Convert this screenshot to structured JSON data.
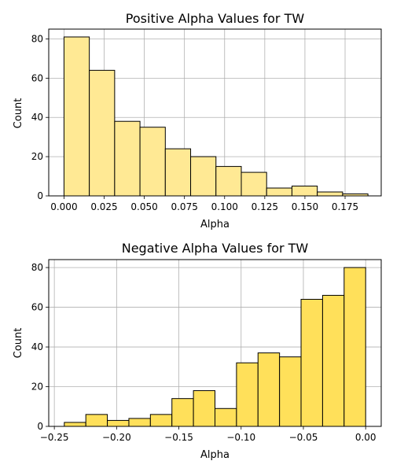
{
  "chart_data": [
    {
      "type": "histogram",
      "title": "Positive Alpha Values for TW",
      "xlabel": "Alpha",
      "ylabel": "Count",
      "bar_color": "#ffe994",
      "edge_color": "#000000",
      "grid": true,
      "xlim": [
        -0.0095,
        0.1975
      ],
      "ylim": [
        0,
        85
      ],
      "xticks": [
        "0.000",
        "0.025",
        "0.050",
        "0.075",
        "0.100",
        "0.125",
        "0.150",
        "0.175"
      ],
      "xtick_values": [
        0,
        0.025,
        0.05,
        0.075,
        0.1,
        0.125,
        0.15,
        0.175
      ],
      "yticks": [
        "0",
        "20",
        "40",
        "60",
        "80"
      ],
      "ytick_values": [
        0,
        20,
        40,
        60,
        80
      ],
      "bin_edges": [
        0.0,
        0.01577,
        0.03154,
        0.04731,
        0.06308,
        0.07885,
        0.09462,
        0.11039,
        0.12616,
        0.14193,
        0.1577,
        0.17347,
        0.18924
      ],
      "counts": [
        81,
        64,
        38,
        35,
        24,
        20,
        15,
        12,
        4,
        5,
        2,
        1
      ]
    },
    {
      "type": "histogram",
      "title": "Negative Alpha Values for TW",
      "xlabel": "Alpha",
      "ylabel": "Count",
      "bar_color": "#ffe05a",
      "edge_color": "#000000",
      "grid": true,
      "xlim": [
        -0.2545,
        0.0125
      ],
      "ylim": [
        0,
        84
      ],
      "xticks": [
        "−0.25",
        "−0.20",
        "−0.15",
        "−0.10",
        "−0.05",
        "0.00"
      ],
      "xtick_values": [
        -0.25,
        -0.2,
        -0.15,
        -0.1,
        -0.05,
        0
      ],
      "yticks": [
        "0",
        "20",
        "40",
        "60",
        "80"
      ],
      "ytick_values": [
        0,
        20,
        40,
        60,
        80
      ],
      "bin_edges": [
        -0.242,
        -0.22471,
        -0.20743,
        -0.19014,
        -0.17286,
        -0.15557,
        -0.13829,
        -0.121,
        -0.10371,
        -0.08643,
        -0.06914,
        -0.05186,
        -0.03457,
        -0.01729,
        0.0
      ],
      "counts": [
        2,
        6,
        3,
        4,
        6,
        14,
        18,
        9,
        32,
        37,
        35,
        64,
        66,
        80
      ]
    }
  ]
}
